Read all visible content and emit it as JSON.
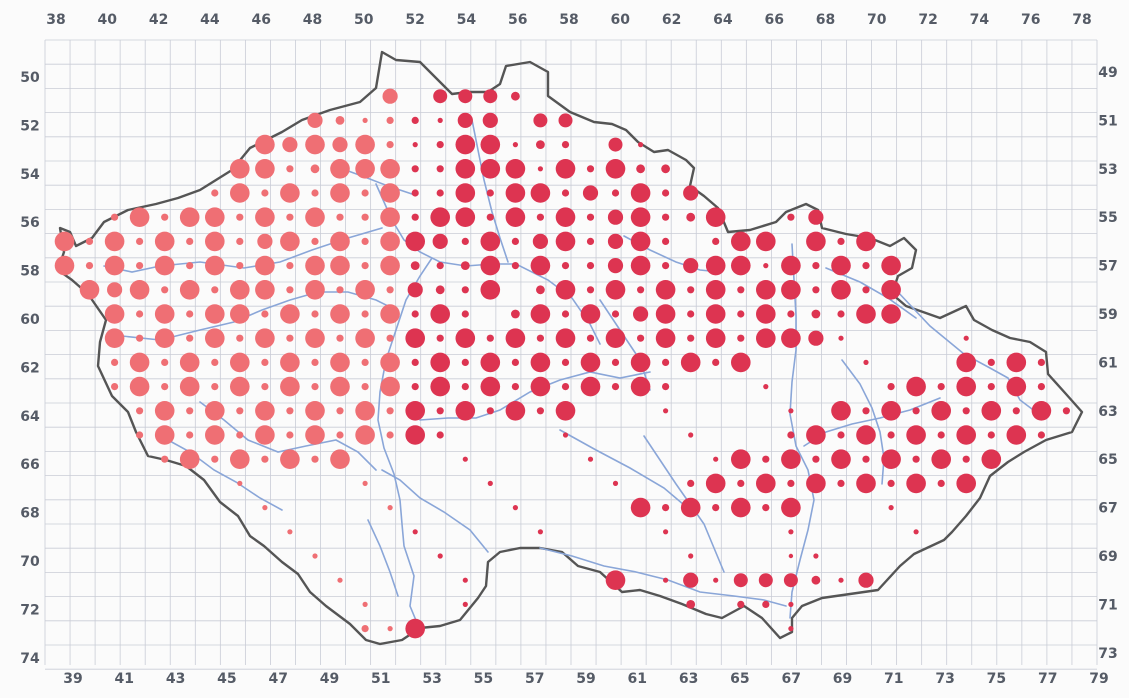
{
  "colors": {
    "background": "#fbfbfb",
    "grid": "#c9ccd6",
    "border": "#555555",
    "river": "#8aa6d8",
    "dot_west": "#ef6f74",
    "dot_east": "#dd3451",
    "label": "#555b66"
  },
  "axes": {
    "top": [
      "38",
      "40",
      "42",
      "44",
      "46",
      "48",
      "50",
      "52",
      "54",
      "56",
      "58",
      "60",
      "62",
      "64",
      "66",
      "68",
      "70",
      "72",
      "74",
      "76",
      "78"
    ],
    "bottom": [
      "39",
      "41",
      "43",
      "45",
      "47",
      "49",
      "51",
      "53",
      "55",
      "57",
      "59",
      "61",
      "63",
      "65",
      "67",
      "69",
      "71",
      "73",
      "75",
      "77",
      "79"
    ],
    "left": [
      "50",
      "52",
      "54",
      "56",
      "58",
      "60",
      "62",
      "64",
      "66",
      "68",
      "70",
      "72",
      "74"
    ],
    "right": [
      "49",
      "51",
      "53",
      "55",
      "57",
      "59",
      "61",
      "63",
      "65",
      "67",
      "69",
      "71",
      "73"
    ]
  },
  "occurrence_rows": [
    "...............2.........3......................................",
    ".............L.1M.xxx2.M.L2.....xxxx..1.................................",
    "........1x.xxMLLM2.SS1MM.xxx1LLML.1.......................................",
    "......S.LLSLSMLLMLMLMLS1SLL.2S.x.xx1.x.....................................",
    "....22...2SLLSLSMLLLLS2LLLSSLLL1LSL22.LL..1........1.........................",
    "...2LLL2S.SSLSLSMLLSLSLSLSLSLSSLSLLSMSLSMLSSMLSM2SLSS.S..........",
    "...LLML.2MLLLSLMLSMLSLSLLSLSLSSLSLLSLSLSMLS2LLLSM.SL..LSS2LLLMS.S..",
    "....LSL2SMLLLLSSLLSLSLSLSLSLSMLSLSLLMSLSMLSMLS.SLL.LSLMSLSLSLLSS...",
    "....LLMSL2.SLLMSLSLMLSLSLSLSLSLSLSLLSL2S2LSLSSMLSMLL.LSLSLSLLMS...",
    ".....LSL2SLSLSLLSLSLLSLSLSLSLMLSLSLLSLSLSM2SL.2LSLSLSLSLLSLSLLM..",
    "......LS2SSLSLSMLSLSLSLSLSLSLSLSLSLSLLSLSLSLSLS.2LSLSMLSLSLS2SLL...",
    "......SLSLSLSLSLSLSLSLSLSLSLSLSLSLMLSLSLSLSLSLSLSLSLSLSLSLSLSLLM..",
    ".......LSLSLSLSLSLSLSLSLSLSLSLSLSLSLSLSLSLSLSLSLSLSLSLSLSLSLSLSL.",
    ".......SLSLSLSLSLSLSLSLSLSLSLSLSLSLSLSLSLSLSLSLSLSLSLSLSLSLSLSLS.",
    "........LSLSLSLSLSLSLSLSLSLSLSLSLSLSLSLSLSLSLSLSLSLSLSLSLSLSLSL..",
    "..........SLSLSLSLSLSLSLSLSLSLSLSLSLSLSLSLSLSLSLSLSLSLSLSLSLS...",
    "...........LSLSLSLSLSLSLSLSLSLSLSLSLSLSLSLSLSLSLSLSLSLSLSLSL....",
    "............SLSLSLSLSLSLS...SLSLSLSLSLSLSLSLSLSLSLSLSLSLS.......",
    "..............LSLSLSL........LSLSLSLSLSLSLSLSLSLSLSLS..........",
    "..............................................................."
  ],
  "legend_note": ""
}
